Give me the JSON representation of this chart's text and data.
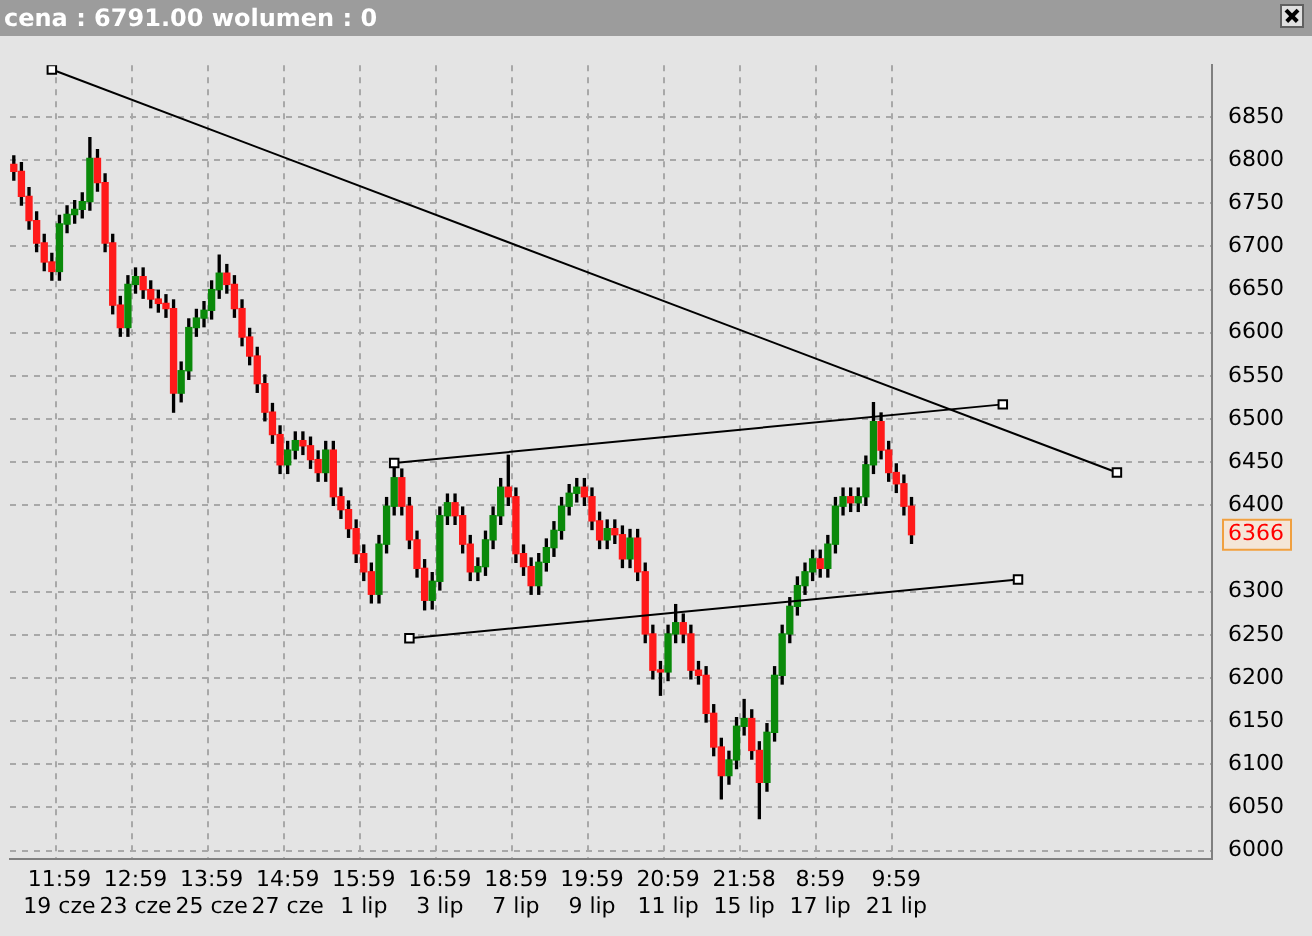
{
  "chart_data": {
    "type": "candlestick",
    "title": "cena : 6791.00 wolumen : 0",
    "categories": [
      null,
      null,
      null,
      null,
      null,
      null,
      "11:59\n19 cze",
      null,
      null,
      null,
      null,
      null,
      null,
      null,
      null,
      null,
      "12:59\n23 cze",
      null,
      null,
      null,
      null,
      null,
      null,
      null,
      null,
      null,
      "13:59\n25 cze",
      null,
      null,
      null,
      null,
      null,
      null,
      null,
      null,
      null,
      "14:59\n27 cze",
      null,
      null,
      null,
      null,
      null,
      null,
      null,
      null,
      null,
      "15:59\n1 lip",
      null,
      null,
      null,
      null,
      null,
      null,
      null,
      null,
      null,
      "16:59\n3 lip",
      null,
      null,
      null,
      null,
      null,
      null,
      null,
      null,
      null,
      "18:59\n7 lip",
      null,
      null,
      null,
      null,
      null,
      null,
      null,
      null,
      null,
      "19:59\n9 lip",
      null,
      null,
      null,
      null,
      null,
      null,
      null,
      null,
      null,
      "20:59\n11 lip",
      null,
      null,
      null,
      null,
      null,
      null,
      null,
      null,
      null,
      "21:58\n15 lip",
      null,
      null,
      null,
      null,
      null,
      null,
      null,
      null,
      null,
      "8:59\n17 lip",
      null,
      null,
      null,
      null,
      null,
      null,
      null,
      null,
      null,
      "9:59\n21 lip",
      null,
      null,
      null,
      null,
      null,
      null,
      null,
      null,
      null,
      null,
      null,
      null,
      null,
      null,
      null,
      null,
      null,
      null,
      null,
      null,
      null,
      null,
      null,
      null,
      null,
      null,
      null,
      null,
      null,
      null,
      null,
      null,
      null,
      null,
      null,
      null,
      null,
      null,
      null,
      null,
      null
    ],
    "ohlc": [
      [
        6795,
        6805,
        6777,
        6787
      ],
      [
        6787,
        6797,
        6748,
        6758
      ],
      [
        6758,
        6768,
        6720,
        6730
      ],
      [
        6730,
        6740,
        6694,
        6704
      ],
      [
        6704,
        6714,
        6672,
        6682
      ],
      [
        6682,
        6692,
        6661,
        6671
      ],
      [
        6671,
        6736,
        6661,
        6726
      ],
      [
        6726,
        6747,
        6716,
        6737
      ],
      [
        6737,
        6753,
        6727,
        6743
      ],
      [
        6743,
        6762,
        6733,
        6752
      ],
      [
        6752,
        6826,
        6742,
        6802
      ],
      [
        6802,
        6812,
        6764,
        6774
      ],
      [
        6774,
        6784,
        6694,
        6704
      ],
      [
        6704,
        6714,
        6622,
        6632
      ],
      [
        6632,
        6642,
        6596,
        6606
      ],
      [
        6606,
        6666,
        6596,
        6656
      ],
      [
        6656,
        6675,
        6646,
        6665
      ],
      [
        6665,
        6675,
        6640,
        6650
      ],
      [
        6650,
        6660,
        6629,
        6639
      ],
      [
        6639,
        6649,
        6624,
        6634
      ],
      [
        6634,
        6644,
        6618,
        6628
      ],
      [
        6628,
        6638,
        6508,
        6530
      ],
      [
        6530,
        6566,
        6520,
        6556
      ],
      [
        6556,
        6616,
        6546,
        6606
      ],
      [
        6606,
        6627,
        6596,
        6617
      ],
      [
        6617,
        6636,
        6607,
        6626
      ],
      [
        6626,
        6660,
        6616,
        6650
      ],
      [
        6650,
        6690,
        6640,
        6669
      ],
      [
        6669,
        6679,
        6646,
        6656
      ],
      [
        6656,
        6666,
        6618,
        6628
      ],
      [
        6628,
        6638,
        6585,
        6595
      ],
      [
        6595,
        6605,
        6563,
        6573
      ],
      [
        6573,
        6583,
        6531,
        6541
      ],
      [
        6541,
        6551,
        6498,
        6508
      ],
      [
        6508,
        6518,
        6472,
        6482
      ],
      [
        6482,
        6492,
        6437,
        6447
      ],
      [
        6447,
        6474,
        6437,
        6464
      ],
      [
        6464,
        6485,
        6454,
        6475
      ],
      [
        6475,
        6485,
        6459,
        6469
      ],
      [
        6469,
        6479,
        6443,
        6453
      ],
      [
        6453,
        6463,
        6428,
        6438
      ],
      [
        6438,
        6474,
        6428,
        6464
      ],
      [
        6464,
        6474,
        6400,
        6410
      ],
      [
        6410,
        6420,
        6385,
        6395
      ],
      [
        6395,
        6405,
        6363,
        6373
      ],
      [
        6373,
        6383,
        6334,
        6344
      ],
      [
        6344,
        6354,
        6313,
        6323
      ],
      [
        6323,
        6333,
        6287,
        6297
      ],
      [
        6297,
        6365,
        6287,
        6355
      ],
      [
        6355,
        6409,
        6345,
        6399
      ],
      [
        6399,
        6449,
        6389,
        6432
      ],
      [
        6432,
        6442,
        6389,
        6399
      ],
      [
        6399,
        6409,
        6350,
        6360
      ],
      [
        6360,
        6370,
        6317,
        6327
      ],
      [
        6327,
        6337,
        6279,
        6290
      ],
      [
        6290,
        6322,
        6280,
        6312
      ],
      [
        6312,
        6398,
        6302,
        6388
      ],
      [
        6388,
        6413,
        6378,
        6403
      ],
      [
        6403,
        6413,
        6378,
        6388
      ],
      [
        6388,
        6398,
        6345,
        6355
      ],
      [
        6355,
        6365,
        6313,
        6323
      ],
      [
        6323,
        6339,
        6313,
        6329
      ],
      [
        6329,
        6370,
        6319,
        6360
      ],
      [
        6360,
        6398,
        6350,
        6388
      ],
      [
        6388,
        6431,
        6378,
        6421
      ],
      [
        6421,
        6458,
        6400,
        6410
      ],
      [
        6410,
        6420,
        6334,
        6344
      ],
      [
        6344,
        6354,
        6319,
        6329
      ],
      [
        6329,
        6339,
        6297,
        6307
      ],
      [
        6307,
        6344,
        6297,
        6334
      ],
      [
        6334,
        6361,
        6324,
        6351
      ],
      [
        6351,
        6381,
        6341,
        6371
      ],
      [
        6371,
        6409,
        6361,
        6399
      ],
      [
        6399,
        6424,
        6389,
        6414
      ],
      [
        6414,
        6431,
        6404,
        6421
      ],
      [
        6421,
        6431,
        6400,
        6410
      ],
      [
        6410,
        6420,
        6372,
        6382
      ],
      [
        6382,
        6392,
        6350,
        6360
      ],
      [
        6360,
        6383,
        6350,
        6373
      ],
      [
        6373,
        6383,
        6356,
        6366
      ],
      [
        6366,
        6376,
        6328,
        6338
      ],
      [
        6338,
        6372,
        6328,
        6362
      ],
      [
        6362,
        6372,
        6313,
        6323
      ],
      [
        6323,
        6333,
        6241,
        6251
      ],
      [
        6251,
        6261,
        6199,
        6209
      ],
      [
        6209,
        6219,
        6180,
        6207
      ],
      [
        6207,
        6261,
        6197,
        6251
      ],
      [
        6251,
        6285,
        6241,
        6264
      ],
      [
        6264,
        6274,
        6241,
        6251
      ],
      [
        6251,
        6261,
        6199,
        6209
      ],
      [
        6209,
        6219,
        6193,
        6203
      ],
      [
        6203,
        6213,
        6149,
        6159
      ],
      [
        6159,
        6169,
        6110,
        6120
      ],
      [
        6120,
        6130,
        6060,
        6087
      ],
      [
        6087,
        6115,
        6077,
        6105
      ],
      [
        6105,
        6154,
        6095,
        6144
      ],
      [
        6144,
        6175,
        6134,
        6153
      ],
      [
        6153,
        6163,
        6106,
        6116
      ],
      [
        6116,
        6126,
        6037,
        6079
      ],
      [
        6079,
        6147,
        6069,
        6137
      ],
      [
        6137,
        6213,
        6127,
        6203
      ],
      [
        6203,
        6261,
        6193,
        6251
      ],
      [
        6251,
        6293,
        6241,
        6283
      ],
      [
        6283,
        6317,
        6273,
        6307
      ],
      [
        6307,
        6333,
        6297,
        6323
      ],
      [
        6323,
        6348,
        6313,
        6338
      ],
      [
        6338,
        6348,
        6317,
        6327
      ],
      [
        6327,
        6365,
        6317,
        6355
      ],
      [
        6355,
        6409,
        6345,
        6399
      ],
      [
        6399,
        6420,
        6389,
        6410
      ],
      [
        6410,
        6420,
        6393,
        6403
      ],
      [
        6403,
        6420,
        6393,
        6410
      ],
      [
        6410,
        6457,
        6400,
        6447
      ],
      [
        6447,
        6519,
        6437,
        6497
      ],
      [
        6497,
        6507,
        6454,
        6464
      ],
      [
        6464,
        6474,
        6428,
        6438
      ],
      [
        6438,
        6448,
        6415,
        6425
      ],
      [
        6425,
        6435,
        6389,
        6399
      ],
      [
        6399,
        6409,
        6356,
        6366
      ],
      null,
      null,
      null,
      null,
      null,
      null,
      null,
      null,
      null,
      null,
      null,
      null,
      null,
      null,
      null,
      null,
      null,
      null,
      null,
      null,
      null,
      null,
      null,
      null,
      null,
      null,
      null,
      null,
      null,
      null,
      null,
      null,
      null,
      null,
      null,
      null,
      null,
      null,
      null
    ],
    "series": [
      {
        "type": "line",
        "color": "#000000",
        "values": [
          null,
          null,
          null,
          null,
          null,
          6905,
          null,
          null,
          null,
          null,
          null,
          null,
          null,
          null,
          null,
          null,
          null,
          null,
          null,
          null,
          null,
          null,
          null,
          null,
          null,
          null,
          null,
          null,
          null,
          null,
          null,
          null,
          null,
          null,
          null,
          null,
          null,
          null,
          null,
          null,
          null,
          null,
          null,
          null,
          null,
          null,
          null,
          null,
          null,
          null,
          null,
          null,
          null,
          null,
          null,
          null,
          null,
          null,
          null,
          null,
          null,
          null,
          null,
          null,
          null,
          null,
          null,
          null,
          null,
          null,
          null,
          null,
          null,
          null,
          null,
          null,
          null,
          null,
          null,
          null,
          null,
          null,
          null,
          null,
          null,
          null,
          null,
          null,
          null,
          null,
          null,
          null,
          null,
          null,
          null,
          null,
          null,
          null,
          null,
          null,
          null,
          null,
          null,
          null,
          null,
          null,
          null,
          null,
          null,
          null,
          null,
          null,
          null,
          null,
          null,
          null,
          null,
          null,
          null,
          null,
          null,
          null,
          null,
          null,
          null,
          null,
          null,
          null,
          null,
          null,
          null,
          null,
          null,
          null,
          null,
          null,
          null,
          null,
          null,
          null,
          null,
          null,
          null,
          null,
          null,
          6438,
          null,
          null,
          null,
          null,
          null,
          null,
          null,
          null,
          null,
          null,
          null,
          null
        ]
      },
      {
        "type": "line",
        "color": "#000000",
        "values": [
          null,
          null,
          null,
          null,
          null,
          null,
          null,
          null,
          null,
          null,
          null,
          null,
          null,
          null,
          null,
          null,
          null,
          null,
          null,
          null,
          null,
          null,
          null,
          null,
          null,
          null,
          null,
          null,
          null,
          null,
          null,
          null,
          null,
          null,
          null,
          null,
          null,
          null,
          null,
          null,
          null,
          null,
          null,
          null,
          null,
          null,
          null,
          null,
          null,
          null,
          6449,
          null,
          null,
          null,
          null,
          null,
          null,
          null,
          null,
          null,
          null,
          null,
          null,
          null,
          null,
          null,
          null,
          null,
          null,
          null,
          null,
          null,
          null,
          null,
          null,
          null,
          null,
          null,
          null,
          null,
          null,
          null,
          null,
          null,
          null,
          null,
          null,
          null,
          null,
          null,
          null,
          null,
          null,
          null,
          null,
          null,
          null,
          null,
          null,
          null,
          null,
          null,
          null,
          null,
          null,
          null,
          null,
          null,
          null,
          null,
          null,
          null,
          null,
          null,
          null,
          null,
          null,
          null,
          null,
          null,
          null,
          null,
          null,
          null,
          null,
          null,
          null,
          null,
          null,
          null,
          6517,
          null,
          null,
          null,
          null,
          null,
          null,
          null,
          null,
          null,
          null,
          null,
          null,
          null,
          null,
          null,
          null,
          null,
          null,
          null,
          null,
          null,
          null,
          null,
          null,
          null,
          null,
          null
        ]
      },
      {
        "type": "line",
        "color": "#000000",
        "values": [
          null,
          null,
          null,
          null,
          null,
          null,
          null,
          null,
          null,
          null,
          null,
          null,
          null,
          null,
          null,
          null,
          null,
          null,
          null,
          null,
          null,
          null,
          null,
          null,
          null,
          null,
          null,
          null,
          null,
          null,
          null,
          null,
          null,
          null,
          null,
          null,
          null,
          null,
          null,
          null,
          null,
          null,
          null,
          null,
          null,
          null,
          null,
          null,
          null,
          null,
          null,
          null,
          6246,
          null,
          null,
          null,
          null,
          null,
          null,
          null,
          null,
          null,
          null,
          null,
          null,
          null,
          null,
          null,
          null,
          null,
          null,
          null,
          null,
          null,
          null,
          null,
          null,
          null,
          null,
          null,
          null,
          null,
          null,
          null,
          null,
          null,
          null,
          null,
          null,
          null,
          null,
          null,
          null,
          null,
          null,
          null,
          null,
          null,
          null,
          null,
          null,
          null,
          null,
          null,
          null,
          null,
          null,
          null,
          null,
          null,
          null,
          null,
          null,
          null,
          null,
          null,
          null,
          null,
          null,
          null,
          null,
          null,
          null,
          null,
          null,
          null,
          null,
          null,
          null,
          null,
          null,
          null,
          6314,
          null,
          null,
          null,
          null,
          null,
          null,
          null,
          null,
          null,
          null,
          null,
          null,
          null,
          null,
          null,
          null,
          null,
          null,
          null,
          null,
          null,
          null,
          null,
          null,
          null
        ]
      }
    ],
    "ylim": [
      5990,
      6910
    ],
    "yticks": [
      6000,
      6050,
      6100,
      6150,
      6200,
      6250,
      6300,
      6400,
      6450,
      6500,
      6550,
      6600,
      6650,
      6700,
      6750,
      6800,
      6850
    ],
    "annotations": [
      "6366"
    ],
    "grid": true,
    "legend": false,
    "marker": "square",
    "line_style": "solid"
  }
}
